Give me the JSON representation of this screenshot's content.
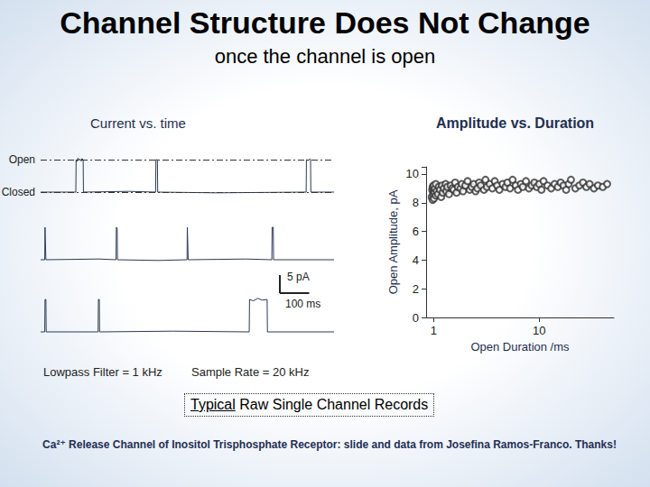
{
  "header": {
    "title": "Channel Structure Does Not Change",
    "subtitle": "once the channel is open"
  },
  "chart_data": [
    {
      "type": "line",
      "title": "Current vs. time",
      "color": "#2b3a55",
      "tick_labels": false,
      "xlim": [
        0,
        1000
      ],
      "ylim": [
        -2,
        11
      ],
      "levels": [
        {
          "label": "Open",
          "value": 9
        },
        {
          "label": "Closed",
          "value": 0
        }
      ],
      "scale_bar": {
        "x": 100,
        "x_label": "100 ms",
        "y": 5,
        "y_label": "5 pA"
      },
      "series": [
        {
          "x": [
            0,
            120,
            121,
            124,
            127,
            131,
            134,
            138,
            141,
            145,
            146,
            300,
            392,
            393,
            398,
            399,
            600,
            905,
            906,
            912,
            918,
            920,
            921,
            1000
          ],
          "values": [
            0,
            0,
            9,
            8.5,
            9.4,
            8.8,
            9.2,
            8.6,
            9.3,
            9,
            0,
            0.2,
            0,
            9,
            9,
            0,
            -0.2,
            0,
            9,
            8.8,
            9.2,
            9,
            0,
            0
          ]
        },
        {
          "x": [
            0,
            14,
            15,
            17,
            18,
            200,
            257,
            258,
            261,
            262,
            400,
            499,
            500,
            502,
            503,
            700,
            788,
            789,
            793,
            794,
            1000
          ],
          "values": [
            0,
            0,
            9,
            9,
            0,
            0.2,
            0,
            9,
            8.7,
            0,
            -0.2,
            0,
            9,
            9,
            0,
            0.2,
            0,
            9,
            9,
            0,
            0
          ]
        },
        {
          "x": [
            0,
            14,
            15,
            18,
            19,
            196,
            197,
            200,
            201,
            450,
            711,
            712,
            725,
            740,
            755,
            772,
            773,
            1000
          ],
          "values": [
            0,
            0,
            9,
            9,
            0,
            0,
            9,
            9,
            0,
            0.2,
            0,
            9,
            8.6,
            9.3,
            8.8,
            9,
            0,
            0
          ]
        }
      ]
    },
    {
      "type": "scatter",
      "title": "Amplitude vs. Duration",
      "x_label": "Open Duration /ms",
      "y_label": "Open Amplitude, pA",
      "log": "x",
      "marker": "emptyCircle",
      "color": "#333333",
      "grid": false,
      "xlim": [
        0.85,
        51
      ],
      "xticks": [
        1,
        10
      ],
      "ylim": [
        0,
        10.5
      ],
      "yticks": [
        0,
        2,
        4,
        6,
        8,
        10
      ],
      "x": [
        0.96,
        0.97,
        0.98,
        0.98,
        0.99,
        1.0,
        1.0,
        1.01,
        1.02,
        1.03,
        1.05,
        1.05,
        1.07,
        1.1,
        1.12,
        1.15,
        1.18,
        1.2,
        1.22,
        1.25,
        1.3,
        1.32,
        1.35,
        1.4,
        1.45,
        1.5,
        1.55,
        1.6,
        1.65,
        1.7,
        1.8,
        1.85,
        1.9,
        2.0,
        2.1,
        2.2,
        2.3,
        2.4,
        2.5,
        2.6,
        2.7,
        2.8,
        3.0,
        3.1,
        3.2,
        3.4,
        3.6,
        3.8,
        4.0,
        4.2,
        4.5,
        4.8,
        5.0,
        5.3,
        5.6,
        6.0,
        6.3,
        6.7,
        7.0,
        7.5,
        8.0,
        8.5,
        9.0,
        9.5,
        10,
        10.5,
        11,
        12,
        13,
        14,
        15,
        16,
        17,
        18,
        19,
        20,
        22,
        24,
        26,
        28,
        30,
        33,
        36,
        40,
        44
      ],
      "values": [
        8.4,
        8.9,
        8.2,
        9.1,
        8.6,
        8.8,
        9.2,
        8.3,
        8.7,
        9.0,
        8.5,
        9.3,
        8.8,
        8.6,
        9.1,
        8.9,
        8.4,
        9.2,
        8.7,
        9.0,
        9.3,
        8.8,
        9.1,
        8.6,
        9.2,
        9.0,
        8.9,
        9.4,
        8.7,
        9.1,
        9.0,
        9.3,
        8.8,
        9.2,
        9.5,
        8.9,
        9.1,
        9.3,
        8.8,
        9.0,
        9.4,
        9.2,
        8.9,
        9.6,
        9.1,
        9.3,
        9.0,
        9.5,
        9.2,
        8.9,
        9.3,
        9.1,
        9.4,
        9.0,
        9.6,
        9.2,
        8.9,
        9.3,
        9.1,
        9.5,
        9.0,
        9.2,
        9.4,
        9.1,
        9.3,
        8.9,
        9.5,
        9.2,
        9.0,
        9.3,
        9.1,
        9.4,
        9.2,
        8.9,
        9.3,
        9.6,
        9.0,
        9.2,
        9.4,
        9.1,
        9.3,
        9.0,
        9.2,
        9.1,
        9.3
      ]
    }
  ],
  "footer": {
    "filter": "Lowpass Filter = 1 kHz",
    "sample_rate": "Sample Rate = 20 kHz",
    "caption_emphasis": "Typical",
    "caption": "Raw Single Channel Records",
    "credit": "Ca²⁺ Release Channel of Inositol Trisphosphate Receptor: slide and data from Josefina Ramos-Franco. Thanks!"
  }
}
